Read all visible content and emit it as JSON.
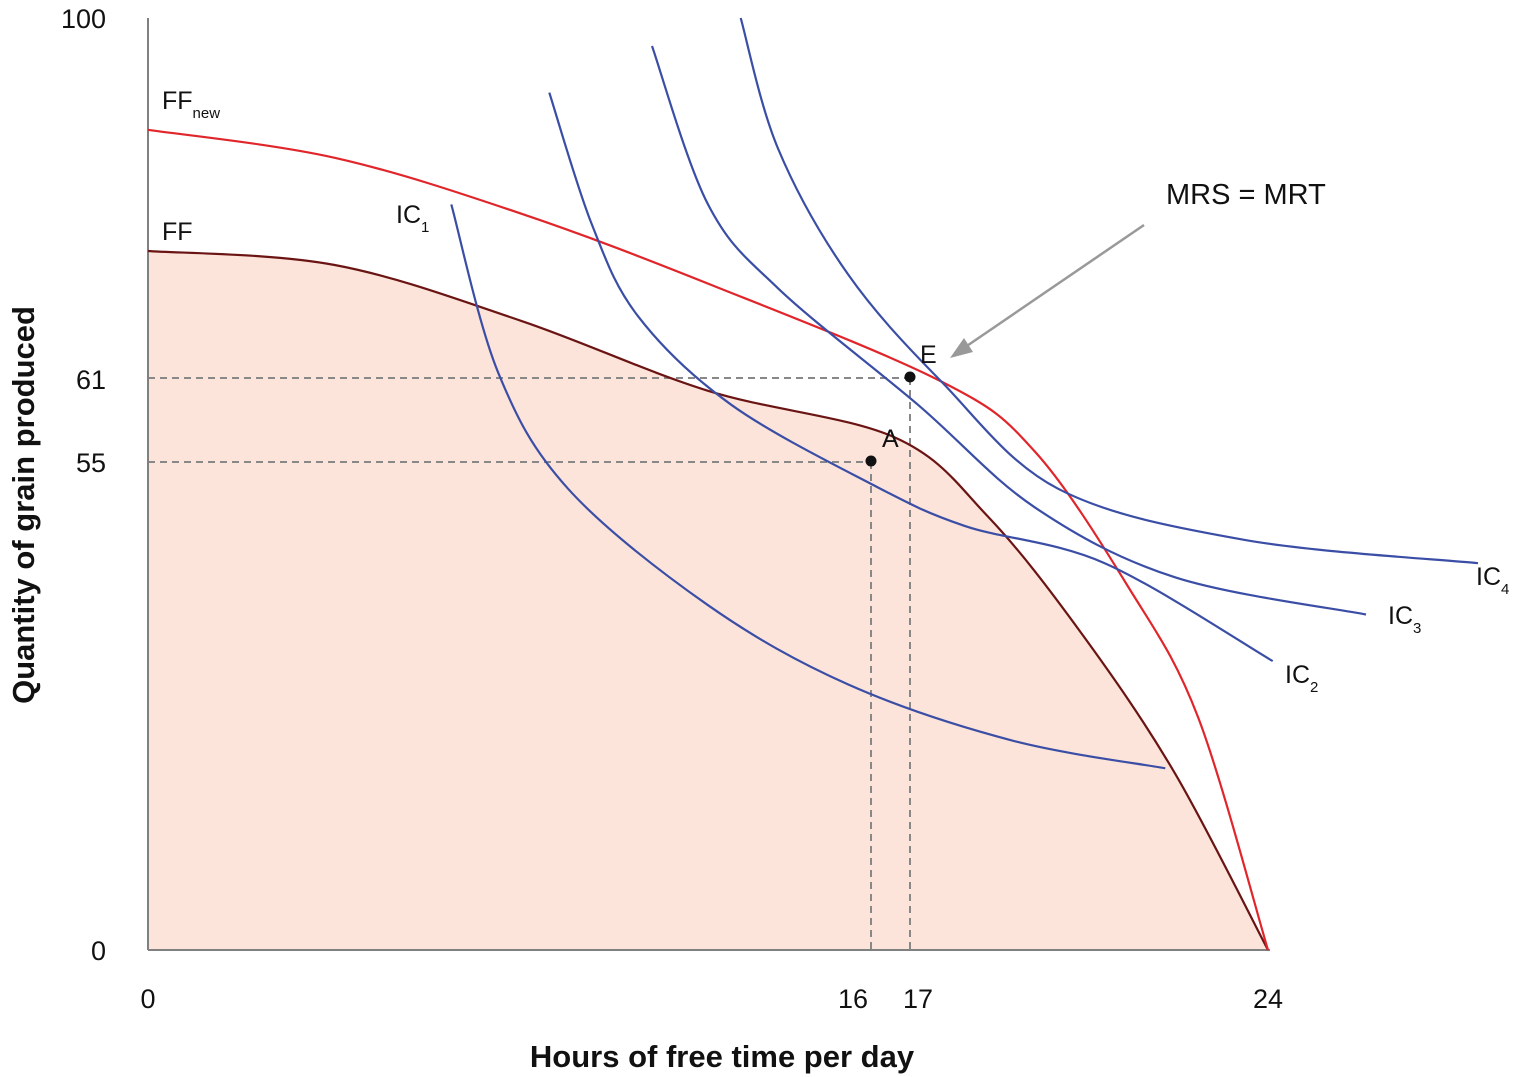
{
  "chart_data": {
    "type": "line",
    "xlabel": "Hours of free time per day",
    "ylabel": "Quantity of grain produced",
    "xlim": [
      0,
      24
    ],
    "ylim": [
      0,
      100
    ],
    "x_ticks": [
      "0",
      "16",
      "17",
      "24"
    ],
    "y_ticks": [
      "0",
      "55",
      "61",
      "100"
    ],
    "grid": false,
    "colors": {
      "frontier": "#6b1414",
      "frontier_new": "#e0262b",
      "indifference": "#3b4ea6",
      "shaded_area": "#fce4da",
      "guides": "#888888",
      "annotation_arrow": "#999999",
      "axis": "#808080"
    },
    "series": [
      {
        "name": "FF",
        "sub": "",
        "kind": "frontier",
        "values": [
          [
            0,
            75
          ],
          [
            4,
            73.5
          ],
          [
            8,
            67.5
          ],
          [
            12,
            60
          ],
          [
            16,
            55
          ],
          [
            18,
            46.5
          ],
          [
            20,
            34
          ],
          [
            22,
            19
          ],
          [
            24,
            0
          ]
        ]
      },
      {
        "name": "FF",
        "sub": "new",
        "kind": "frontier",
        "values": [
          [
            0,
            88
          ],
          [
            4,
            85
          ],
          [
            8,
            79
          ],
          [
            12,
            71.5
          ],
          [
            17,
            61
          ],
          [
            19,
            53.5
          ],
          [
            21,
            39
          ],
          [
            22.5,
            25
          ],
          [
            24,
            0
          ]
        ]
      },
      {
        "name": "IC",
        "sub": "1",
        "kind": "indifference",
        "values": [
          [
            6.5,
            80
          ],
          [
            7.5,
            62
          ],
          [
            9,
            49.5
          ],
          [
            12,
            37
          ],
          [
            15,
            28.5
          ],
          [
            18.5,
            22.5
          ],
          [
            21.8,
            19.5
          ]
        ]
      },
      {
        "name": "IC",
        "sub": "2",
        "kind": "indifference",
        "values": [
          [
            8.6,
            92
          ],
          [
            9.5,
            78
          ],
          [
            10.5,
            68
          ],
          [
            12.5,
            58.5
          ],
          [
            15.5,
            50
          ],
          [
            17.5,
            45.5
          ],
          [
            20.5,
            41.5
          ],
          [
            24.1,
            31
          ]
        ]
      },
      {
        "name": "IC",
        "sub": "3",
        "kind": "indifference",
        "values": [
          [
            10.8,
            97
          ],
          [
            12,
            80
          ],
          [
            13.5,
            71
          ],
          [
            16.5,
            58.5
          ],
          [
            19,
            47.5
          ],
          [
            22,
            40
          ],
          [
            26.1,
            36
          ]
        ]
      },
      {
        "name": "IC",
        "sub": "4",
        "kind": "indifference",
        "values": [
          [
            12.7,
            100
          ],
          [
            13.5,
            86
          ],
          [
            15,
            72.5
          ],
          [
            17,
            61
          ],
          [
            19.5,
            49.5
          ],
          [
            23.5,
            44
          ],
          [
            28.5,
            41.5
          ]
        ]
      }
    ],
    "points": [
      {
        "label": "A",
        "x": 15.5,
        "y": 52.5
      },
      {
        "label": "E",
        "x": 16.3,
        "y": 61.5
      }
    ],
    "annotations": [
      {
        "text": "MRS = MRT",
        "points_to": "E"
      }
    ]
  }
}
